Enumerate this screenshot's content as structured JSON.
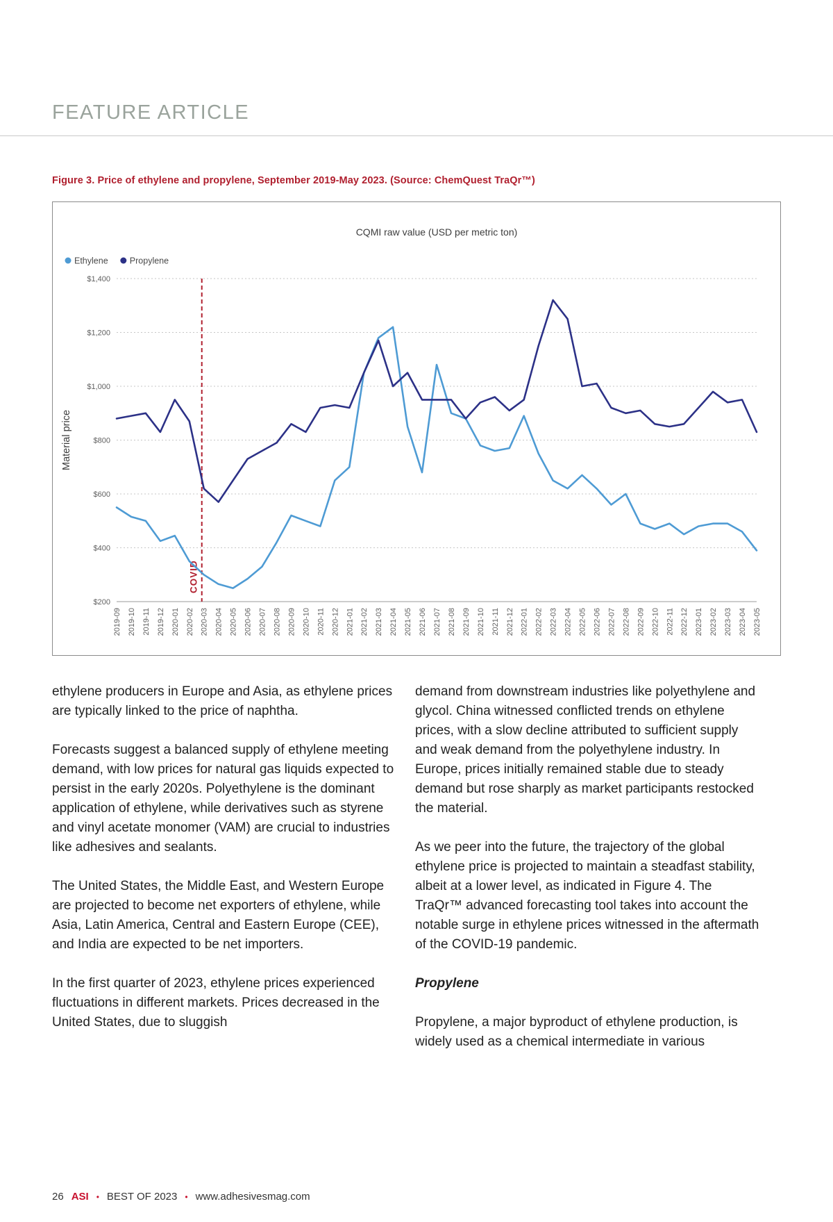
{
  "colors": {
    "accent_red": "#b01f2e",
    "ethylene_blue": "#4e9bd4",
    "propylene_navy": "#2c3187"
  },
  "header": {
    "title": "FEATURE ARTICLE"
  },
  "figure": {
    "caption": "Figure 3. Price of ethylene and propylene, September 2019-May 2023. (Source: ChemQuest TraQr™)"
  },
  "chart_data": {
    "type": "line",
    "title": "CQMI raw value (USD per metric ton)",
    "ylabel": "Material price",
    "ylim": [
      200,
      1400
    ],
    "ytick_labels": [
      "$200",
      "$400",
      "$600",
      "$800",
      "$1,000",
      "$1,200",
      "$1,400"
    ],
    "grid": true,
    "legend_position": "top-left",
    "categories": [
      "2019-09",
      "2019-10",
      "2019-11",
      "2019-12",
      "2020-01",
      "2020-02",
      "2020-03",
      "2020-04",
      "2020-05",
      "2020-06",
      "2020-07",
      "2020-08",
      "2020-09",
      "2020-10",
      "2020-11",
      "2020-12",
      "2021-01",
      "2021-02",
      "2021-03",
      "2021-04",
      "2021-05",
      "2021-06",
      "2021-07",
      "2021-08",
      "2021-09",
      "2021-10",
      "2021-11",
      "2021-12",
      "2022-01",
      "2022-02",
      "2022-03",
      "2022-04",
      "2022-05",
      "2022-06",
      "2022-07",
      "2022-08",
      "2022-09",
      "2022-10",
      "2022-11",
      "2022-12",
      "2023-01",
      "2023-02",
      "2023-03",
      "2023-04",
      "2023-05"
    ],
    "series": [
      {
        "name": "Ethylene",
        "color": "#4e9bd4",
        "values": [
          550,
          515,
          500,
          425,
          445,
          350,
          300,
          265,
          250,
          285,
          330,
          420,
          520,
          500,
          480,
          650,
          700,
          1050,
          1180,
          1220,
          850,
          680,
          1080,
          900,
          880,
          780,
          760,
          770,
          890,
          750,
          650,
          620,
          670,
          620,
          560,
          600,
          490,
          470,
          490,
          450,
          480,
          490,
          490,
          460,
          390
        ]
      },
      {
        "name": "Propylene",
        "color": "#2c3187",
        "values": [
          880,
          890,
          900,
          830,
          950,
          870,
          620,
          570,
          650,
          730,
          760,
          790,
          860,
          830,
          920,
          930,
          920,
          1050,
          1170,
          1000,
          1050,
          950,
          950,
          950,
          880,
          940,
          960,
          910,
          950,
          1150,
          1320,
          1250,
          1000,
          1010,
          920,
          900,
          910,
          860,
          850,
          860,
          920,
          980,
          940,
          950,
          830
        ]
      }
    ],
    "annotation": {
      "label": "COVID",
      "x": "2020-03",
      "color": "#b01f2e"
    }
  },
  "article": {
    "left_column": [
      "ethylene producers in Europe and Asia, as ethylene prices are typically linked to the price of naphtha.",
      "Forecasts suggest a balanced supply of ethylene meeting demand, with low prices for natural gas liquids expected to persist in the early 2020s. Polyethylene is the dominant application of ethylene, while derivatives such as styrene and vinyl acetate monomer (VAM) are crucial to industries like adhesives and sealants.",
      "The United States, the Middle East, and Western Europe are projected to become net exporters of ethylene, while Asia, Latin America, Central and Eastern Europe (CEE), and India are expected to be net importers.",
      "In the first quarter of 2023, ethylene prices experienced fluctuations in different markets. Prices decreased in the United States, due to sluggish"
    ],
    "right_column": [
      "demand from downstream industries like polyethylene and glycol. China witnessed conflicted trends on ethylene prices, with a slow decline attributed to sufficient supply and weak demand from the polyethylene industry. In Europe, prices initially remained stable due to steady demand but rose sharply as market participants restocked the material.",
      "As we peer into the future, the trajectory of the global ethylene price is projected to maintain a steadfast stability, albeit at a lower level, as indicated in Figure 4. The TraQr™ advanced forecasting tool takes into account the notable surge in ethylene prices witnessed in the aftermath of the COVID-19 pandemic."
    ],
    "subhead": "Propylene",
    "right_column_tail": [
      "Propylene, a major byproduct of ethylene production, is widely used as a chemical intermediate in various"
    ]
  },
  "footer": {
    "page_number": "26",
    "brand": "ASI",
    "bullet": "•",
    "issue": "BEST OF 2023",
    "website": "www.adhesivesmag.com"
  }
}
